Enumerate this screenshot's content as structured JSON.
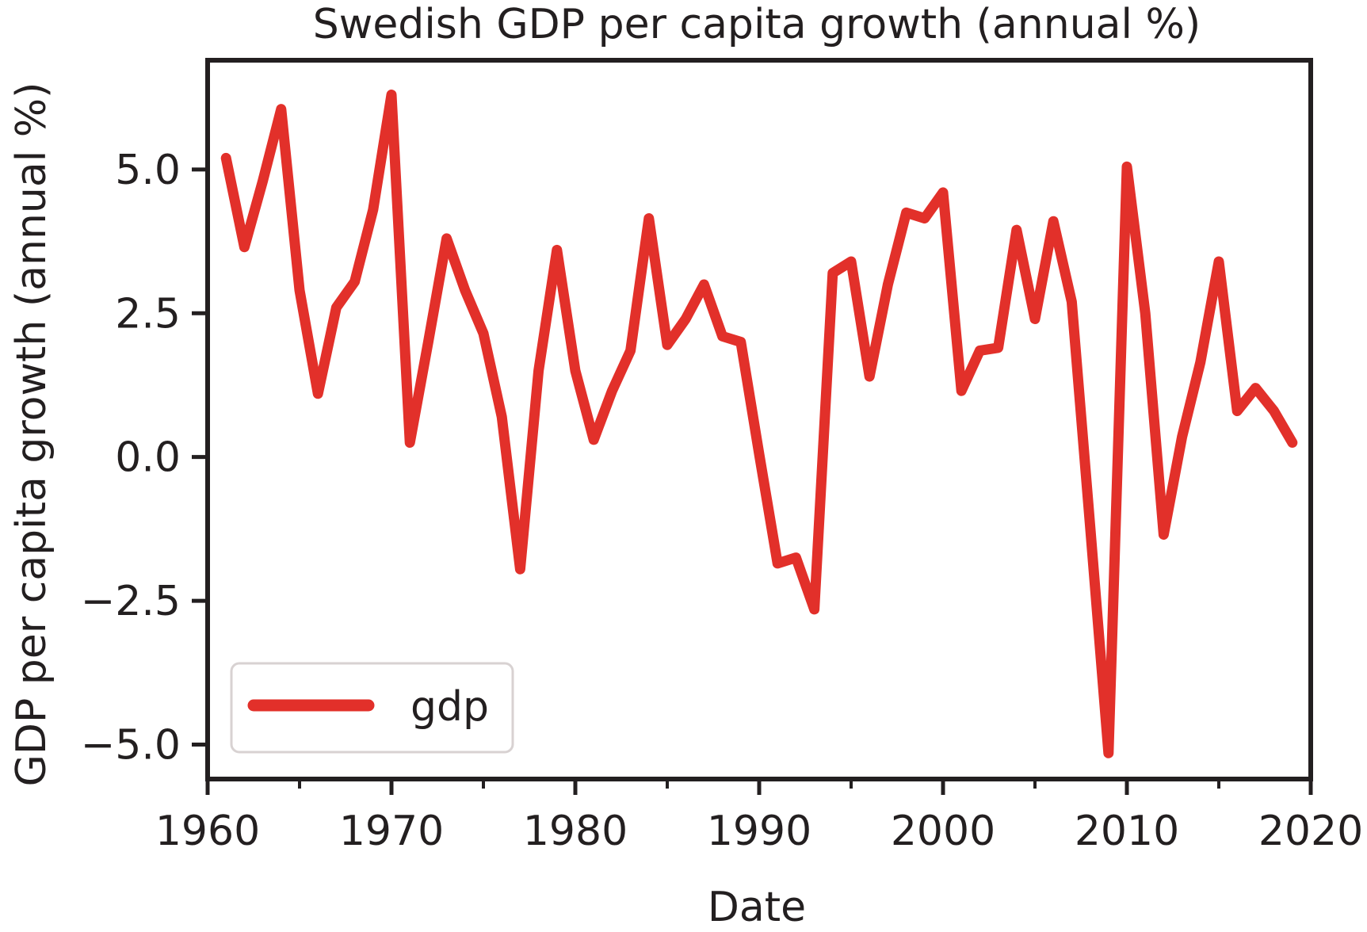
{
  "chart_data": {
    "type": "line",
    "title": "Swedish GDP per capita growth (annual %)",
    "xlabel": "Date",
    "ylabel": "GDP per capita growth (annual %)",
    "xlim": [
      1960,
      2020
    ],
    "ylim": [
      -5.6,
      6.9
    ],
    "x_ticks": [
      1960,
      1970,
      1980,
      1990,
      2000,
      2010,
      2020
    ],
    "x_minor_ticks": [
      1965,
      1975,
      1985,
      1995,
      2005,
      2015
    ],
    "y_ticks": [
      {
        "value": 5.0,
        "label": "5.0"
      },
      {
        "value": 2.5,
        "label": "2.5"
      },
      {
        "value": 0.0,
        "label": "0.0"
      },
      {
        "value": -2.5,
        "label": "−2.5"
      },
      {
        "value": -5.0,
        "label": "−5.0"
      }
    ],
    "grid": false,
    "legend_position": "lower-left",
    "series": [
      {
        "name": "gdp",
        "color": "#e2302a",
        "x": [
          1961,
          1962,
          1963,
          1964,
          1965,
          1966,
          1967,
          1968,
          1969,
          1970,
          1971,
          1972,
          1973,
          1974,
          1975,
          1976,
          1977,
          1978,
          1979,
          1980,
          1981,
          1982,
          1983,
          1984,
          1985,
          1986,
          1987,
          1988,
          1989,
          1990,
          1991,
          1992,
          1993,
          1994,
          1995,
          1996,
          1997,
          1998,
          1999,
          2000,
          2001,
          2002,
          2003,
          2004,
          2005,
          2006,
          2007,
          2008,
          2009,
          2010,
          2011,
          2012,
          2013,
          2014,
          2015,
          2016,
          2017,
          2018,
          2019
        ],
        "y": [
          5.2,
          3.65,
          4.8,
          6.05,
          2.9,
          1.1,
          2.6,
          3.05,
          4.3,
          6.3,
          0.25,
          2.0,
          3.8,
          2.9,
          2.15,
          0.7,
          -1.95,
          1.5,
          3.6,
          1.5,
          0.3,
          1.15,
          1.85,
          4.15,
          1.95,
          2.4,
          3.0,
          2.1,
          2.0,
          0.05,
          -1.85,
          -1.75,
          -2.65,
          3.2,
          3.4,
          1.4,
          3.0,
          4.25,
          4.15,
          4.6,
          1.15,
          1.85,
          1.9,
          3.95,
          2.4,
          4.1,
          2.7,
          -1.2,
          -5.15,
          5.05,
          2.5,
          -1.35,
          0.35,
          1.65,
          3.4,
          0.8,
          1.2,
          0.8,
          0.25
        ]
      }
    ]
  }
}
